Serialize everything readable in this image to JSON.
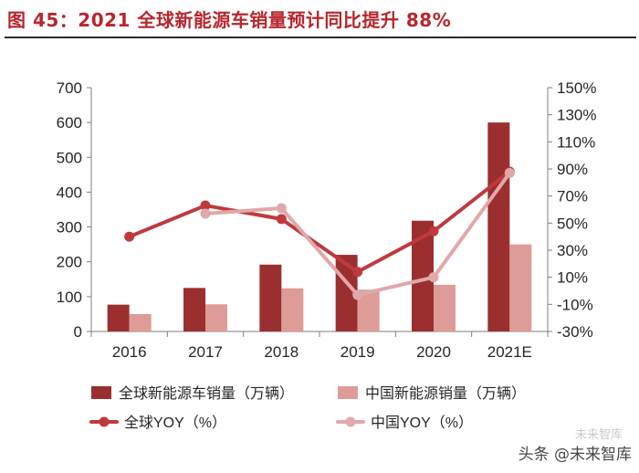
{
  "header": {
    "title": "图 45：2021 全球新能源车销量预计同比提升 88%",
    "title_color": "#b8262c"
  },
  "watermark": {
    "text": "头条 @未来智库",
    "faint_text": "未来智库"
  },
  "chart_data": {
    "type": "bar",
    "categories": [
      "2016",
      "2017",
      "2018",
      "2019",
      "2020",
      "2021E"
    ],
    "left_axis": {
      "ylim": [
        0,
        700
      ],
      "ticks": [
        0,
        100,
        200,
        300,
        400,
        500,
        600,
        700
      ],
      "tick_labels": [
        "0",
        "100",
        "200",
        "300",
        "400",
        "500",
        "600",
        "700"
      ]
    },
    "right_axis": {
      "ylim": [
        -30,
        150
      ],
      "ticks": [
        -30,
        -10,
        10,
        30,
        50,
        70,
        90,
        110,
        130,
        150
      ],
      "tick_labels": [
        "-30%",
        "-10%",
        "10%",
        "30%",
        "50%",
        "70%",
        "90%",
        "110%",
        "130%",
        "150%"
      ]
    },
    "series": [
      {
        "name": "全球新能源车销量（万辆）",
        "kind": "bar",
        "axis": "left",
        "color": "#9b2f30",
        "values": [
          77,
          125,
          192,
          220,
          318,
          600
        ]
      },
      {
        "name": "中国新能源销量（万辆）",
        "kind": "bar",
        "axis": "left",
        "color": "#dd9c97",
        "values": [
          50,
          78,
          124,
          120,
          134,
          250
        ]
      },
      {
        "name": "全球YOY（%）",
        "kind": "line",
        "axis": "right",
        "color": "#c0393d",
        "values": [
          40,
          63,
          53,
          14,
          44,
          88
        ]
      },
      {
        "name": "中国YOY（%）",
        "kind": "line",
        "axis": "right",
        "color": "#e0a8aa",
        "values": [
          null,
          57,
          61,
          -3,
          10,
          87
        ]
      }
    ],
    "title": "",
    "xlabel": "",
    "ylabel": "",
    "grid": false,
    "legend_position": "bottom"
  }
}
